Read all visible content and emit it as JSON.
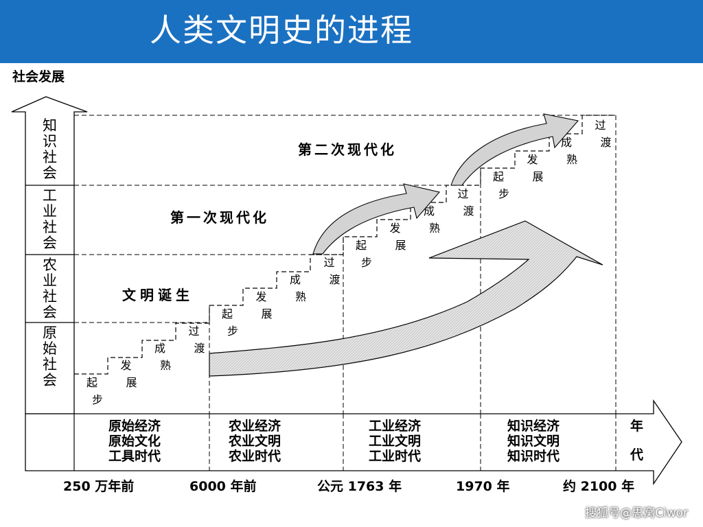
{
  "title": "人类文明史的进程",
  "y_axis_title": "社会发展",
  "societies": [
    {
      "label": "知识社会",
      "chars": [
        "知",
        "识",
        "社",
        "会"
      ]
    },
    {
      "label": "工业社会",
      "chars": [
        "工",
        "业",
        "社",
        "会"
      ]
    },
    {
      "label": "农业社会",
      "chars": [
        "农",
        "业",
        "社",
        "会"
      ]
    },
    {
      "label": "原始社会",
      "chars": [
        "原",
        "始",
        "社",
        "会"
      ]
    }
  ],
  "stages": [
    "起步",
    "发展",
    "成熟",
    "过渡"
  ],
  "eras": [
    {
      "lines": [
        "原始经济",
        "原始文化",
        "工具时代"
      ]
    },
    {
      "lines": [
        "农业经济",
        "农业文明",
        "农业时代"
      ]
    },
    {
      "lines": [
        "工业经济",
        "工业文明",
        "工业时代"
      ]
    },
    {
      "lines": [
        "知识经济",
        "知识文明",
        "知识时代"
      ]
    }
  ],
  "x_axis_title": [
    "年",
    "代"
  ],
  "timeline": [
    "250 万年前",
    "6000 年前",
    "公元 1763 年",
    "1970 年",
    "约 2100 年"
  ],
  "annotations": {
    "civilization_birth": "文明诞生",
    "first_modernization": "第一次现代化",
    "second_modernization": "第二次现代化"
  },
  "watermark": "搜狐号@思窝Ciwor",
  "colors": {
    "banner": "#1b71c1",
    "title_text": "#ffffff",
    "arrow_fill": "#dcdcdc"
  }
}
